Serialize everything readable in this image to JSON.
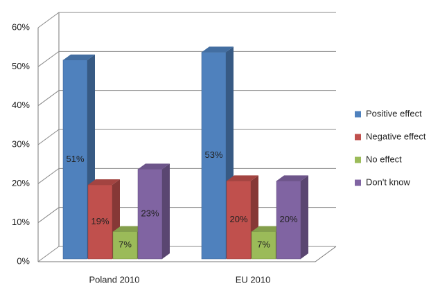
{
  "chart_data": {
    "type": "bar3d",
    "categories": [
      "Poland 2010",
      "EU 2010"
    ],
    "series": [
      {
        "name": "Positive effect",
        "color": "#4f81bd",
        "values": [
          51,
          53
        ],
        "value_labels": [
          "51%",
          "53%"
        ]
      },
      {
        "name": "Negative effect",
        "color": "#c0504d",
        "values": [
          19,
          20
        ],
        "value_labels": [
          "19%",
          "20%"
        ]
      },
      {
        "name": "No effect",
        "color": "#9bbb59",
        "values": [
          7,
          7
        ],
        "value_labels": [
          "7%",
          "7%"
        ]
      },
      {
        "name": "Don't know",
        "color": "#8064a2",
        "values": [
          23,
          20
        ],
        "value_labels": [
          "23%",
          "20%"
        ]
      }
    ],
    "ylim": [
      0,
      60
    ],
    "yticks": [
      {
        "value": 0,
        "label": "0%"
      },
      {
        "value": 10,
        "label": "10%"
      },
      {
        "value": 20,
        "label": "20%"
      },
      {
        "value": 30,
        "label": "30%"
      },
      {
        "value": 40,
        "label": "40%"
      },
      {
        "value": 50,
        "label": "50%"
      },
      {
        "value": 60,
        "label": "60%"
      }
    ],
    "grid": true,
    "legend": "right"
  }
}
